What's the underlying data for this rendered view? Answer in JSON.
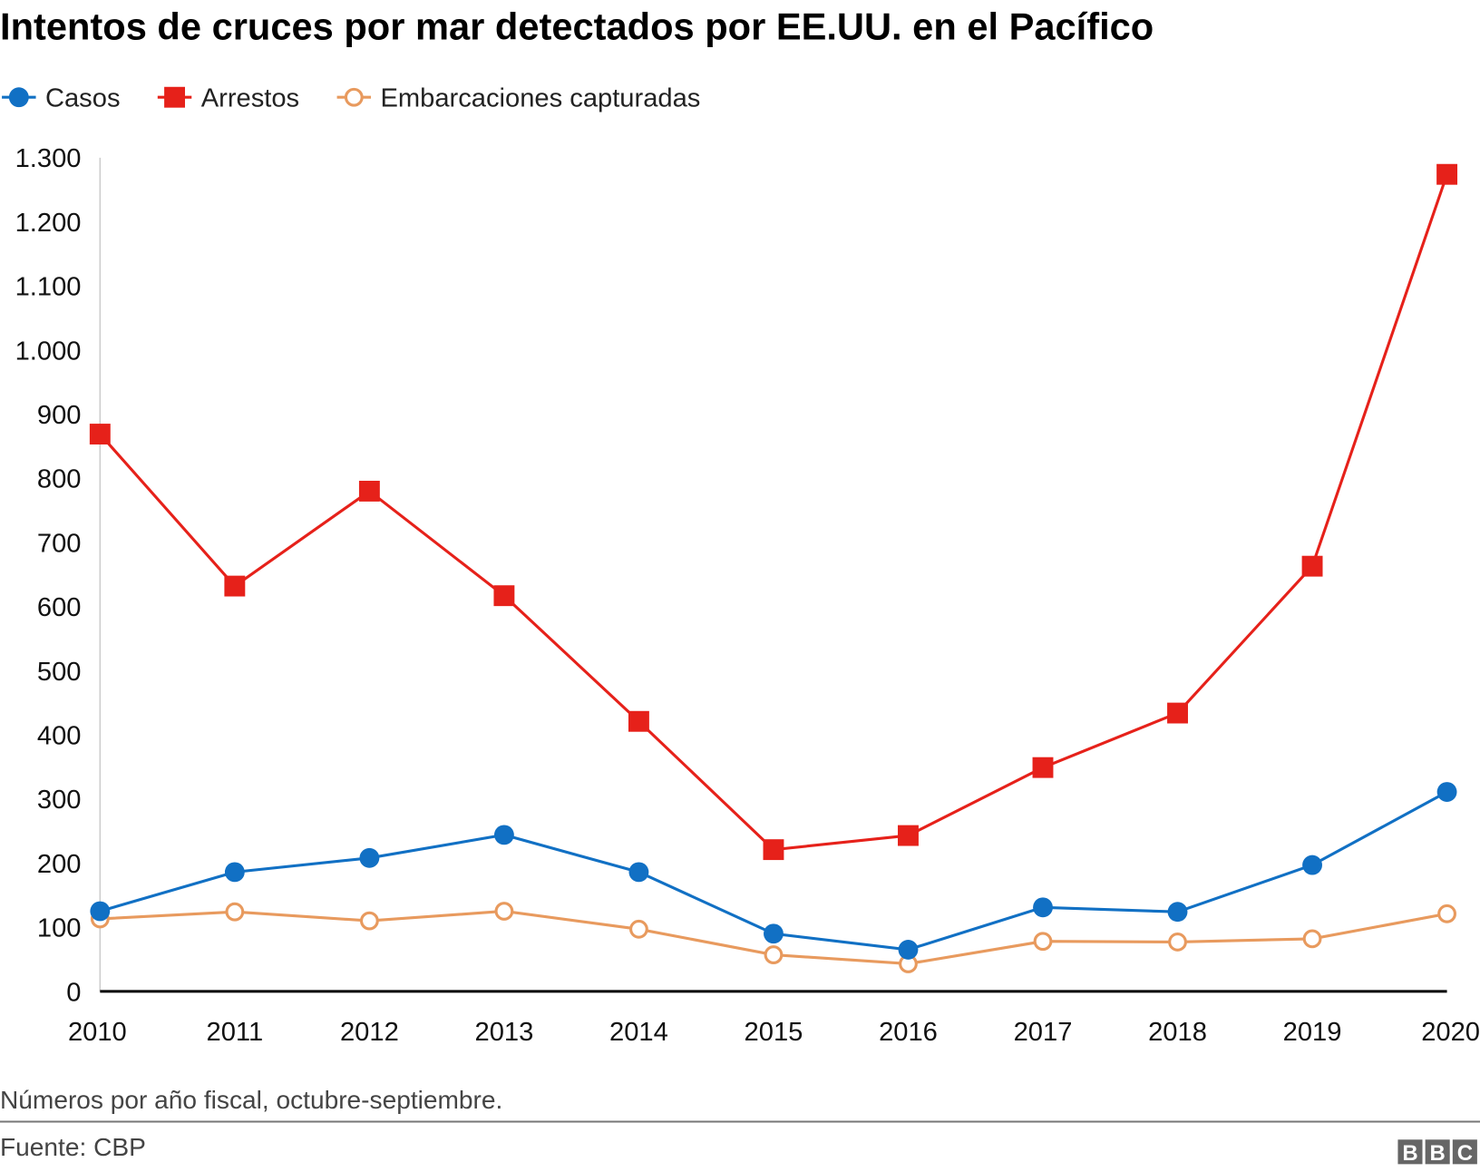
{
  "chart_data": {
    "type": "line",
    "title": "Intentos de cruces por mar detectados por EE.UU. en el Pacífico",
    "xlabel": "",
    "ylabel": "",
    "x": [
      "2010",
      "2011",
      "2012",
      "2013",
      "2014",
      "2015",
      "2016",
      "2017",
      "2018",
      "2019",
      "2020"
    ],
    "ylim": [
      0,
      1300
    ],
    "yticks": [
      0,
      100,
      200,
      300,
      400,
      500,
      600,
      700,
      800,
      900,
      1000,
      1100,
      1200,
      1300
    ],
    "ytick_labels": [
      "0",
      "100",
      "200",
      "300",
      "400",
      "500",
      "600",
      "700",
      "800",
      "900",
      "1.000",
      "1.100",
      "1.200",
      "1.300"
    ],
    "grid": false,
    "legend_position": "top-left",
    "series": [
      {
        "name": "Casos",
        "color": "#1170c4",
        "marker": "filled-circle",
        "values": [
          125,
          186,
          208,
          244,
          186,
          90,
          65,
          131,
          124,
          197,
          311
        ]
      },
      {
        "name": "Arrestos",
        "color": "#e6211a",
        "marker": "filled-square",
        "values": [
          869,
          632,
          780,
          617,
          421,
          221,
          243,
          349,
          434,
          663,
          1274
        ]
      },
      {
        "name": "Embarcaciones capturadas",
        "color": "#e89a5e",
        "marker": "hollow-circle",
        "values": [
          113,
          124,
          110,
          125,
          97,
          57,
          43,
          78,
          77,
          82,
          121
        ]
      }
    ],
    "note": "Números por año fiscal, octubre-septiembre.",
    "source": "Fuente: CBP"
  },
  "logo": "BBC"
}
